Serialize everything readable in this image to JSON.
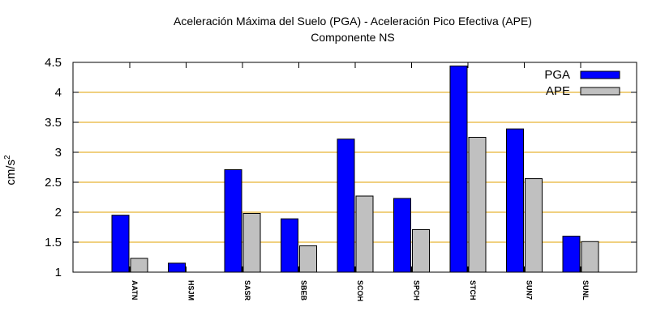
{
  "chart_data": {
    "type": "bar",
    "title": "Aceleración Máxima del Suelo (PGA) -  Aceleración Pico Efectiva (APE)",
    "subtitle": "Componente NS",
    "ylabel": "cm/s",
    "ylabel_sup": "2",
    "xlabel": "",
    "ylim": [
      1,
      4.5
    ],
    "yticks": [
      "1",
      "1.5",
      "2",
      "2.5",
      "3",
      "3.5",
      "4",
      "4.5"
    ],
    "grid": "horizontal",
    "legend_position": "top-right",
    "categories": [
      "AATN",
      "HSJM",
      "SASR",
      "SBEB",
      "SCOH",
      "SPCH",
      "STCH",
      "SUN7",
      "SUNL"
    ],
    "series": [
      {
        "name": "PGA",
        "color": "#0000ff",
        "values": [
          1.95,
          1.15,
          2.71,
          1.89,
          3.22,
          2.23,
          4.44,
          3.39,
          1.6
        ]
      },
      {
        "name": "APE",
        "color": "#c0c0c0",
        "values": [
          1.23,
          null,
          1.98,
          1.44,
          2.27,
          1.71,
          3.25,
          2.56,
          1.51
        ]
      }
    ],
    "grid_color": "#e0a000"
  }
}
